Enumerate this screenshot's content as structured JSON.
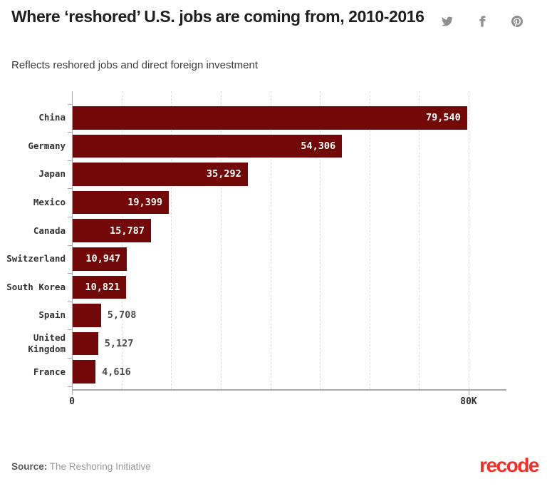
{
  "header": {
    "title": "Where ‘reshored’ U.S. jobs are coming from, 2010-2016",
    "subtitle": "Reflects reshored jobs and direct foreign investment",
    "social_icons": [
      "twitter",
      "facebook",
      "pinterest"
    ]
  },
  "chart_data": {
    "type": "bar",
    "orientation": "horizontal",
    "title": "Where ‘reshored’ U.S. jobs are coming from, 2010-2016",
    "subtitle": "Reflects reshored jobs and direct foreign investment",
    "xlabel": "",
    "ylabel": "",
    "categories": [
      "China",
      "Germany",
      "Japan",
      "Mexico",
      "Canada",
      "Switzerland",
      "South Korea",
      "Spain",
      "United Kingdom",
      "France"
    ],
    "values": [
      79540,
      54306,
      35292,
      19399,
      15787,
      10947,
      10821,
      5708,
      5127,
      4616
    ],
    "value_labels": [
      "79,540",
      "54,306",
      "35,292",
      "19,399",
      "15,787",
      "10,947",
      "10,821",
      "5,708",
      "5,127",
      "4,616"
    ],
    "label_inside": [
      true,
      true,
      true,
      true,
      true,
      true,
      true,
      false,
      false,
      false
    ],
    "xlim": [
      0,
      87500
    ],
    "x_ticks": [
      {
        "value": 0,
        "label": "0"
      },
      {
        "value": 80000,
        "label": "80K"
      }
    ],
    "gridlines": {
      "style": "dashed",
      "from": 10000,
      "to": 80000,
      "interval": 10000
    },
    "legend": "none",
    "colors": {
      "bar": "#730808",
      "inside_label": "#ffffff",
      "outside_label": "#4a4a4a",
      "axis": "#ababab",
      "gridline": "#dcdcdc"
    }
  },
  "footer": {
    "source_label": "Source:",
    "source_text": " The Reshoring Initiative",
    "brand": "recode",
    "brand_color": "#fb2b25"
  }
}
